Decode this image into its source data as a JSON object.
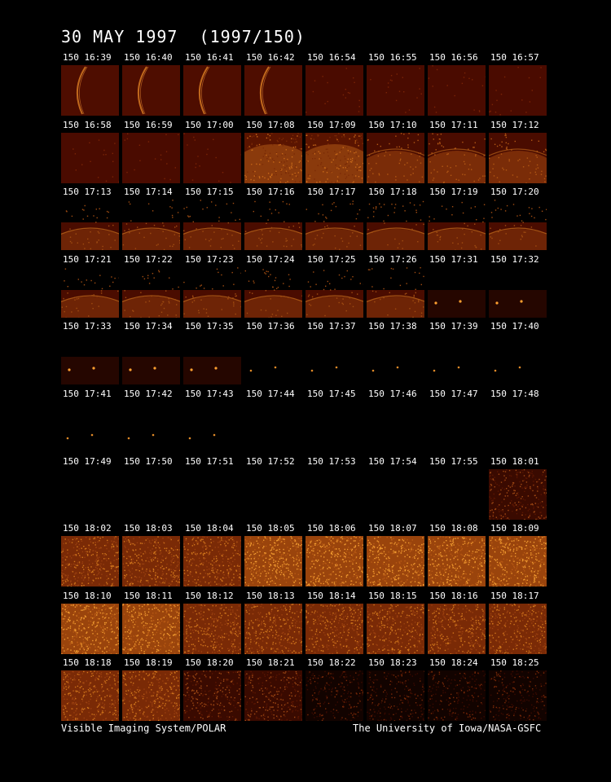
{
  "title": "30 MAY 1997  (1997/150)",
  "footer": {
    "left": "Visible Imaging System/POLAR",
    "right": "The University of Iowa/NASA-GSFC"
  },
  "colors": {
    "background": "#000000",
    "frame_dim": "#4a0c00",
    "frame_bright": "#d87a18",
    "glow": "#ffb040"
  },
  "frames": [
    {
      "label": "150 16:39",
      "type": "arc"
    },
    {
      "label": "150 16:40",
      "type": "arc"
    },
    {
      "label": "150 16:41",
      "type": "arc"
    },
    {
      "label": "150 16:42",
      "type": "arc"
    },
    {
      "label": "150 16:54",
      "type": "dim"
    },
    {
      "label": "150 16:55",
      "type": "dim"
    },
    {
      "label": "150 16:56",
      "type": "dim"
    },
    {
      "label": "150 16:57",
      "type": "dim"
    },
    {
      "label": "150 16:58",
      "type": "dim"
    },
    {
      "label": "150 16:59",
      "type": "dim"
    },
    {
      "label": "150 17:00",
      "type": "dim"
    },
    {
      "label": "150 17:08",
      "type": "limb-big"
    },
    {
      "label": "150 17:09",
      "type": "limb-big"
    },
    {
      "label": "150 17:10",
      "type": "limb"
    },
    {
      "label": "150 17:11",
      "type": "limb"
    },
    {
      "label": "150 17:12",
      "type": "limb"
    },
    {
      "label": "150 17:13",
      "type": "limb-low"
    },
    {
      "label": "150 17:14",
      "type": "limb-low"
    },
    {
      "label": "150 17:15",
      "type": "limb-low"
    },
    {
      "label": "150 17:16",
      "type": "limb-low"
    },
    {
      "label": "150 17:17",
      "type": "limb-low"
    },
    {
      "label": "150 17:18",
      "type": "limb-low"
    },
    {
      "label": "150 17:19",
      "type": "limb-low"
    },
    {
      "label": "150 17:20",
      "type": "limb-low"
    },
    {
      "label": "150 17:21",
      "type": "limb-low"
    },
    {
      "label": "150 17:22",
      "type": "limb-low"
    },
    {
      "label": "150 17:23",
      "type": "limb-low"
    },
    {
      "label": "150 17:24",
      "type": "limb-low"
    },
    {
      "label": "150 17:25",
      "type": "limb-low"
    },
    {
      "label": "150 17:26",
      "type": "limb-low"
    },
    {
      "label": "150 17:31",
      "type": "dots"
    },
    {
      "label": "150 17:32",
      "type": "dots"
    },
    {
      "label": "150 17:33",
      "type": "dots"
    },
    {
      "label": "150 17:34",
      "type": "dots"
    },
    {
      "label": "150 17:35",
      "type": "dots"
    },
    {
      "label": "150 17:36",
      "type": "sparse"
    },
    {
      "label": "150 17:37",
      "type": "sparse"
    },
    {
      "label": "150 17:38",
      "type": "sparse"
    },
    {
      "label": "150 17:39",
      "type": "sparse"
    },
    {
      "label": "150 17:40",
      "type": "sparse"
    },
    {
      "label": "150 17:41",
      "type": "sparse"
    },
    {
      "label": "150 17:42",
      "type": "sparse"
    },
    {
      "label": "150 17:43",
      "type": "sparse"
    },
    {
      "label": "150 17:44",
      "type": "black"
    },
    {
      "label": "150 17:45",
      "type": "black"
    },
    {
      "label": "150 17:46",
      "type": "black"
    },
    {
      "label": "150 17:47",
      "type": "black"
    },
    {
      "label": "150 17:48",
      "type": "black"
    },
    {
      "label": "150 17:49",
      "type": "black"
    },
    {
      "label": "150 17:50",
      "type": "black"
    },
    {
      "label": "150 17:51",
      "type": "black"
    },
    {
      "label": "150 17:52",
      "type": "black"
    },
    {
      "label": "150 17:53",
      "type": "black"
    },
    {
      "label": "150 17:54",
      "type": "black"
    },
    {
      "label": "150 17:55",
      "type": "black"
    },
    {
      "label": "150 18:01",
      "type": "noise-dim"
    },
    {
      "label": "150 18:02",
      "type": "noise"
    },
    {
      "label": "150 18:03",
      "type": "noise"
    },
    {
      "label": "150 18:04",
      "type": "noise"
    },
    {
      "label": "150 18:05",
      "type": "noise-bright"
    },
    {
      "label": "150 18:06",
      "type": "noise-bright"
    },
    {
      "label": "150 18:07",
      "type": "noise-bright"
    },
    {
      "label": "150 18:08",
      "type": "noise-bright"
    },
    {
      "label": "150 18:09",
      "type": "noise-bright"
    },
    {
      "label": "150 18:10",
      "type": "noise-bright"
    },
    {
      "label": "150 18:11",
      "type": "noise-bright"
    },
    {
      "label": "150 18:12",
      "type": "noise"
    },
    {
      "label": "150 18:13",
      "type": "noise"
    },
    {
      "label": "150 18:14",
      "type": "noise"
    },
    {
      "label": "150 18:15",
      "type": "noise"
    },
    {
      "label": "150 18:16",
      "type": "noise"
    },
    {
      "label": "150 18:17",
      "type": "noise"
    },
    {
      "label": "150 18:18",
      "type": "noise"
    },
    {
      "label": "150 18:19",
      "type": "noise"
    },
    {
      "label": "150 18:20",
      "type": "noise-dim"
    },
    {
      "label": "150 18:21",
      "type": "noise-dim"
    },
    {
      "label": "150 18:22",
      "type": "noise-dark"
    },
    {
      "label": "150 18:23",
      "type": "noise-dark"
    },
    {
      "label": "150 18:24",
      "type": "noise-dark"
    },
    {
      "label": "150 18:25",
      "type": "noise-dark"
    }
  ]
}
